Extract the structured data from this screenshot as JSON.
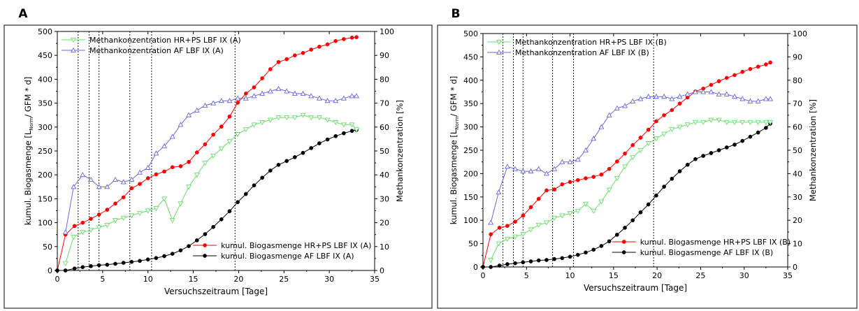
{
  "chart_data": [
    {
      "type": "line",
      "panel_label": "A",
      "xlabel": "Versuchszeitraum [Tage]",
      "ylabel_main": "kumul. Biogasmenge [L",
      "ylabel_sub": "Norm",
      "ylabel_tail": "/ GFM * d]",
      "y2label": "Methankonzentration [%]",
      "xlim": [
        0,
        35
      ],
      "ylim": [
        0,
        500
      ],
      "y2lim": [
        0,
        100
      ],
      "x_ticks": [
        "0",
        "5",
        "10",
        "15",
        "20",
        "25",
        "30",
        "35"
      ],
      "y_ticks": [
        "0",
        "50",
        "100",
        "150",
        "200",
        "250",
        "300",
        "350",
        "400",
        "450",
        "500"
      ],
      "y2_ticks": [
        "0",
        "10",
        "20",
        "30",
        "40",
        "50",
        "60",
        "70",
        "80",
        "90",
        "100"
      ],
      "vlines": [
        2.3,
        3.5,
        4.6,
        8.0,
        10.4,
        19.6
      ],
      "legend_top": [
        {
          "name": "Methankonzentration HR+PS LBF IX (A)",
          "series": 2
        },
        {
          "name": "Methankonzentration AF LBF IX (A)",
          "series": 3
        }
      ],
      "legend_bottom": [
        {
          "name": "kumul. Biogasmenge HR+PS LBF IX (A)",
          "series": 0
        },
        {
          "name": "kumul. Biogasmenge AF  LBF IX (A)",
          "series": 1
        }
      ],
      "series": [
        {
          "color": "#ff0000",
          "marker": "circle",
          "axis": "y",
          "x": [
            0,
            0.9,
            1.9,
            2.8,
            3.7,
            4.6,
            5.5,
            6.4,
            7.3,
            8.2,
            9.1,
            10.0,
            10.9,
            11.8,
            12.7,
            13.6,
            14.5,
            15.4,
            16.3,
            17.2,
            18.1,
            19.0,
            19.9,
            20.8,
            21.7,
            22.6,
            23.5,
            24.4,
            25.3,
            26.2,
            27.1,
            28.0,
            28.9,
            29.8,
            30.7,
            31.6,
            32.5,
            33.0
          ],
          "y": [
            0,
            75,
            93,
            100,
            108,
            117,
            127,
            140,
            153,
            172,
            181,
            193,
            201,
            207,
            216,
            218,
            227,
            247,
            264,
            284,
            301,
            322,
            351,
            370,
            383,
            402,
            421,
            436,
            442,
            450,
            455,
            462,
            468,
            473,
            480,
            484,
            487,
            488
          ]
        },
        {
          "color": "#000000",
          "marker": "circle",
          "axis": "y",
          "x": [
            0,
            0.9,
            1.9,
            2.8,
            3.7,
            4.6,
            5.5,
            6.4,
            7.3,
            8.2,
            9.1,
            10.0,
            10.9,
            11.8,
            12.7,
            13.6,
            14.5,
            15.4,
            16.3,
            17.2,
            18.1,
            19.0,
            19.9,
            20.8,
            21.7,
            22.6,
            23.5,
            24.4,
            25.3,
            26.2,
            27.1,
            28.0,
            28.9,
            29.8,
            30.7,
            31.6,
            32.5,
            33.0
          ],
          "y": [
            0,
            0,
            4,
            7,
            9,
            11,
            12,
            14,
            16,
            18,
            20,
            23,
            26,
            30,
            35,
            42,
            51,
            63,
            76,
            91,
            107,
            124,
            143,
            160,
            178,
            194,
            209,
            221,
            229,
            237,
            246,
            256,
            266,
            274,
            281,
            287,
            292,
            294
          ]
        },
        {
          "color": "#66e066",
          "marker": "triangle-down",
          "axis": "y2",
          "x": [
            0.9,
            1.8,
            2.8,
            3.7,
            4.6,
            5.5,
            6.4,
            7.3,
            8.2,
            9.1,
            10.0,
            10.9,
            11.8,
            12.7,
            13.6,
            14.5,
            15.4,
            16.3,
            17.2,
            18.1,
            19.0,
            19.9,
            20.8,
            21.7,
            22.6,
            23.5,
            24.4,
            25.3,
            26.2,
            27.1,
            28.0,
            28.9,
            29.8,
            30.7,
            31.6,
            32.5,
            33.0
          ],
          "y": [
            3,
            14,
            16,
            17,
            18,
            19,
            21,
            22,
            23,
            24,
            25,
            26,
            30,
            21,
            28,
            35,
            40,
            45,
            48,
            51,
            54,
            57,
            59,
            61,
            62,
            63,
            64,
            64,
            64,
            65,
            64,
            64,
            63,
            62,
            61,
            61,
            59
          ]
        },
        {
          "color": "#6666e6",
          "marker": "triangle-up",
          "axis": "y2",
          "x": [
            0.9,
            1.8,
            2.8,
            3.7,
            4.6,
            5.5,
            6.4,
            7.3,
            8.2,
            9.1,
            10.0,
            10.9,
            11.8,
            12.7,
            13.6,
            14.5,
            15.4,
            16.3,
            17.2,
            18.1,
            19.0,
            19.9,
            20.8,
            21.7,
            22.6,
            23.5,
            24.4,
            25.3,
            26.2,
            27.1,
            28.0,
            28.9,
            29.8,
            30.7,
            31.6,
            32.5,
            33.0
          ],
          "y": [
            16,
            35,
            40,
            38,
            35,
            35,
            38,
            37,
            38,
            41,
            43,
            49,
            52,
            56,
            61,
            65,
            67,
            69,
            70,
            71,
            71,
            72,
            72,
            73,
            74,
            75,
            76,
            75,
            74,
            74,
            73,
            72,
            71,
            71,
            72,
            73,
            73
          ]
        }
      ]
    },
    {
      "type": "line",
      "panel_label": "B",
      "xlabel": "Versuchszeitraum [Tage]",
      "ylabel_main": "kumul. Biogasmenge [L",
      "ylabel_sub": "Norm",
      "ylabel_tail": "/ GFM * d]",
      "y2label": "Methankonzentration [%]",
      "xlim": [
        0,
        35
      ],
      "ylim": [
        0,
        500
      ],
      "y2lim": [
        0,
        100
      ],
      "x_ticks": [
        "0",
        "5",
        "10",
        "15",
        "20",
        "25",
        "30",
        "35"
      ],
      "y_ticks": [
        "0",
        "50",
        "100",
        "150",
        "200",
        "250",
        "300",
        "350",
        "400",
        "450",
        "500"
      ],
      "y2_ticks": [
        "0",
        "10",
        "20",
        "30",
        "40",
        "50",
        "60",
        "70",
        "80",
        "90",
        "100"
      ],
      "vlines": [
        2.3,
        3.5,
        4.6,
        8.0,
        10.4,
        19.6
      ],
      "legend_top": [
        {
          "name": "Methankonzentration HR+PS LBF IX (B)",
          "series": 2
        },
        {
          "name": "Methankonzentration AF LBF IX (B)",
          "series": 3
        }
      ],
      "legend_bottom": [
        {
          "name": "kumul. Biogasmenge HR+PS LBF IX (B)",
          "series": 0
        },
        {
          "name": "kumul. Biogasmenge AF LBF IX (B)",
          "series": 1
        }
      ],
      "series": [
        {
          "color": "#ff0000",
          "marker": "circle",
          "axis": "y",
          "x": [
            0,
            0.9,
            1.9,
            2.8,
            3.7,
            4.6,
            5.5,
            6.4,
            7.3,
            8.2,
            9.1,
            10.0,
            10.9,
            11.8,
            12.7,
            13.6,
            14.5,
            15.4,
            16.3,
            17.2,
            18.1,
            19.0,
            19.9,
            20.8,
            21.7,
            22.6,
            23.5,
            24.4,
            25.3,
            26.2,
            27.1,
            28.0,
            28.9,
            29.8,
            30.7,
            31.6,
            32.5,
            33.0
          ],
          "y": [
            0,
            70,
            84,
            88,
            97,
            110,
            128,
            146,
            164,
            166,
            177,
            182,
            186,
            190,
            193,
            198,
            210,
            226,
            243,
            261,
            277,
            294,
            312,
            325,
            336,
            350,
            363,
            376,
            382,
            390,
            398,
            405,
            411,
            418,
            424,
            429,
            434,
            438
          ]
        },
        {
          "color": "#000000",
          "marker": "circle",
          "axis": "y",
          "x": [
            0,
            0.9,
            1.9,
            2.8,
            3.7,
            4.6,
            5.5,
            6.4,
            7.3,
            8.2,
            9.1,
            10.0,
            10.9,
            11.8,
            12.7,
            13.6,
            14.5,
            15.4,
            16.3,
            17.2,
            18.1,
            19.0,
            19.9,
            20.8,
            21.7,
            22.6,
            23.5,
            24.4,
            25.3,
            26.2,
            27.1,
            28.0,
            28.9,
            29.8,
            30.7,
            31.6,
            32.5,
            33.0
          ],
          "y": [
            0,
            0,
            3,
            6,
            8,
            10,
            12,
            14,
            15,
            17,
            19,
            22,
            26,
            31,
            37,
            45,
            55,
            69,
            84,
            100,
            117,
            134,
            153,
            172,
            189,
            205,
            219,
            231,
            238,
            244,
            250,
            256,
            262,
            270,
            279,
            288,
            298,
            307
          ]
        },
        {
          "color": "#66e066",
          "marker": "triangle-down",
          "axis": "y2",
          "x": [
            0.9,
            1.8,
            2.8,
            3.7,
            4.6,
            5.5,
            6.4,
            7.3,
            8.2,
            9.1,
            10.0,
            10.9,
            11.8,
            12.7,
            13.6,
            14.5,
            15.4,
            16.3,
            17.2,
            18.1,
            19.0,
            19.9,
            20.8,
            21.7,
            22.6,
            23.5,
            24.4,
            25.3,
            26.2,
            27.1,
            28.0,
            28.9,
            29.8,
            30.7,
            31.6,
            32.5,
            33.0
          ],
          "y": [
            3,
            10,
            12,
            13,
            14,
            16,
            18,
            19,
            21,
            22,
            23,
            24,
            27,
            24,
            28,
            33,
            38,
            43,
            47,
            50,
            53,
            55,
            57,
            59,
            60,
            61,
            62,
            62,
            63,
            63,
            62,
            62,
            62,
            62,
            62,
            62,
            62
          ]
        },
        {
          "color": "#6666e6",
          "marker": "triangle-up",
          "axis": "y2",
          "x": [
            0.9,
            1.8,
            2.8,
            3.7,
            4.6,
            5.5,
            6.4,
            7.3,
            8.2,
            9.1,
            10.0,
            10.9,
            11.8,
            12.7,
            13.6,
            14.5,
            15.4,
            16.3,
            17.2,
            18.1,
            19.0,
            19.9,
            20.8,
            21.7,
            22.6,
            23.5,
            24.4,
            25.3,
            26.2,
            27.1,
            28.0,
            28.9,
            29.8,
            30.7,
            31.6,
            32.5,
            33.0
          ],
          "y": [
            19,
            32,
            43,
            42,
            41,
            41,
            42,
            40,
            42,
            45,
            45,
            46,
            50,
            55,
            60,
            65,
            68,
            69,
            71,
            72,
            73,
            73,
            73,
            72,
            73,
            74,
            75,
            75,
            75,
            74,
            74,
            73,
            72,
            71,
            71,
            72,
            72
          ]
        }
      ]
    }
  ]
}
